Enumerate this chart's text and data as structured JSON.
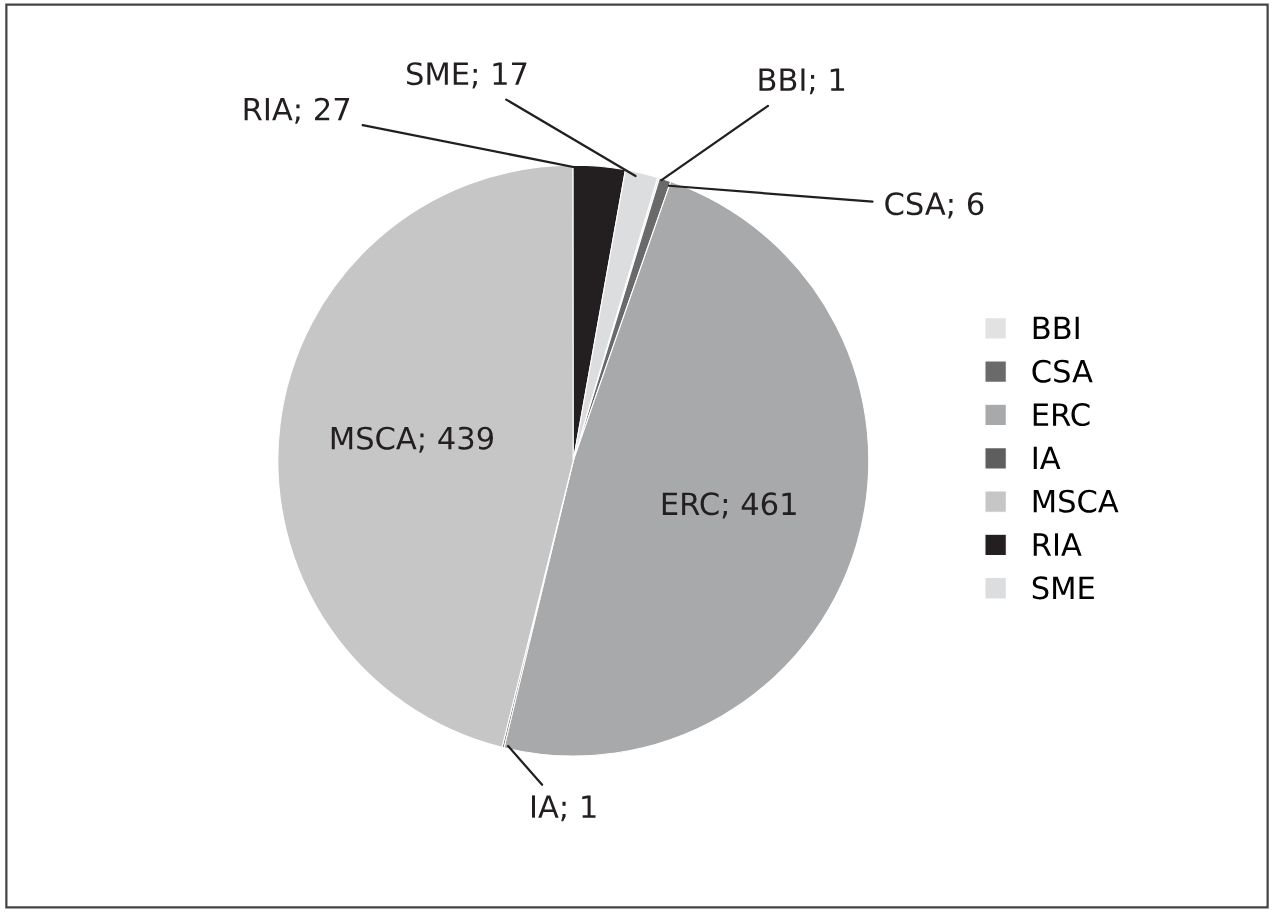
{
  "chart_data": {
    "type": "pie",
    "categories": [
      "BBI",
      "CSA",
      "ERC",
      "IA",
      "MSCA",
      "RIA",
      "SME"
    ],
    "values": [
      1,
      6,
      461,
      1,
      439,
      27,
      17
    ],
    "colors": [
      "#e2e2e2",
      "#6a6a6a",
      "#a8a9ab",
      "#5e5e5e",
      "#c6c6c6",
      "#231f20",
      "#dcdddf"
    ],
    "value_labels": [
      "BBI; 1",
      "CSA; 6",
      "ERC; 461",
      "IA; 1",
      "MSCA; 439",
      "RIA; 27",
      "SME; 17"
    ],
    "legend": "right"
  }
}
